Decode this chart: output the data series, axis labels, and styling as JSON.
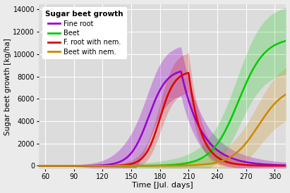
{
  "title": "Sugar beet growth",
  "xlabel": "Time [Jul. days]",
  "ylabel": "Sugar beet growth [kg/ha]",
  "xlim": [
    53,
    312
  ],
  "ylim": [
    -300,
    14500
  ],
  "xticks": [
    60,
    90,
    120,
    150,
    180,
    210,
    240,
    270,
    300
  ],
  "yticks": [
    0,
    2000,
    4000,
    6000,
    8000,
    10000,
    12000,
    14000
  ],
  "bg_color": "#EBEBEB",
  "panel_bg": "#DCDCDC",
  "grid_color": "white",
  "colors": {
    "fine_root": "#9900CC",
    "beet": "#00CC00",
    "f_root_nem": "#DD0000",
    "beet_nem": "#CC8800"
  },
  "legend_items": [
    "Fine root",
    "Beet",
    "F. root with nem.",
    "Beet with nem."
  ]
}
